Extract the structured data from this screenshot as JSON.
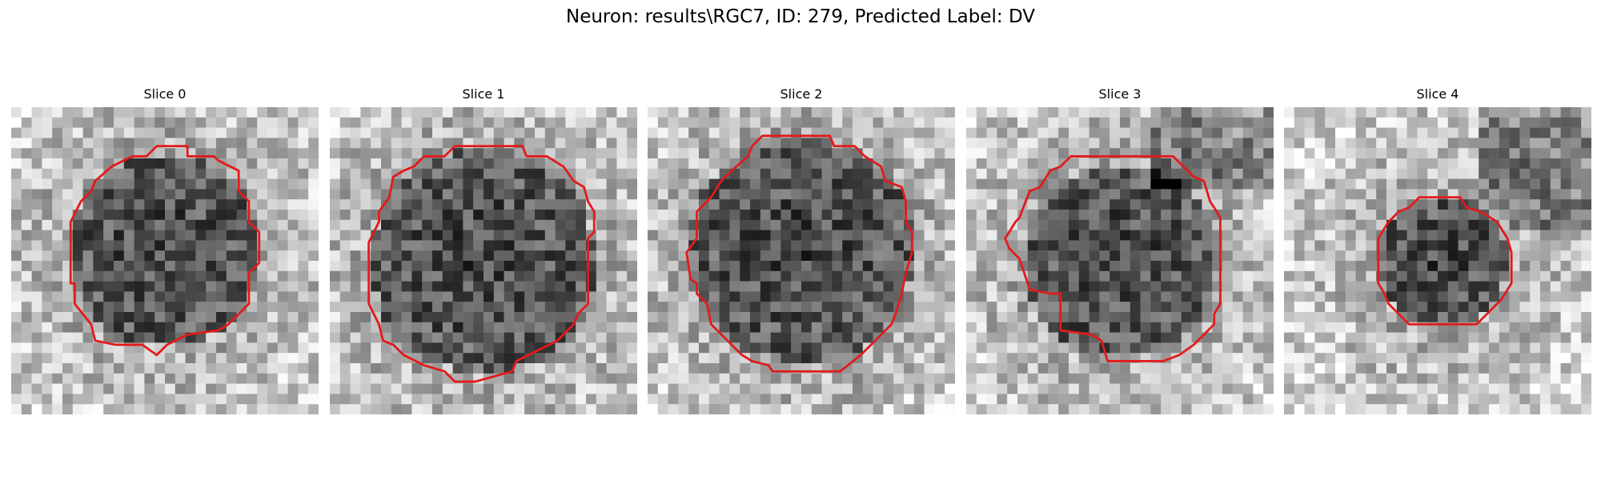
{
  "figure": {
    "suptitle": "Neuron: results\\RGC7, ID: 279, Predicted Label: DV",
    "contour_color": "#e31a1c",
    "colormap": "gray"
  },
  "panels": [
    {
      "title": "Slice 0",
      "dark_spot_name": "cell-body-dark-region",
      "shape": "round"
    },
    {
      "title": "Slice 1",
      "dark_spot_name": "cell-body-dark-region",
      "shape": "round-large"
    },
    {
      "title": "Slice 2",
      "dark_spot_name": "cell-body-dark-region",
      "shape": "round-large"
    },
    {
      "title": "Slice 3",
      "dark_spot_name": "cell-body-dark-region",
      "shape": "notched"
    },
    {
      "title": "Slice 4",
      "dark_spot_name": "cell-body-dark-region",
      "shape": "small"
    }
  ]
}
